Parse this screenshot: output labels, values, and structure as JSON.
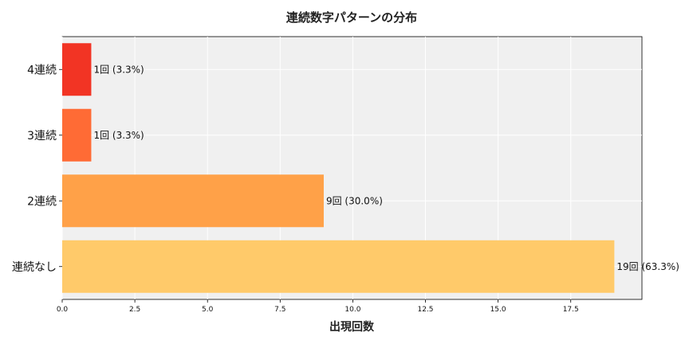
{
  "chart_data": {
    "type": "bar",
    "orientation": "horizontal",
    "title": "連続数字パターンの分布",
    "xlabel": "出現回数",
    "ylabel": "",
    "categories": [
      "連続なし",
      "2連続",
      "3連続",
      "4連続"
    ],
    "values": [
      19,
      9,
      1,
      1
    ],
    "data_labels": [
      "19回 (63.3%)",
      "9回 (30.0%)",
      "1回 (3.3%)",
      "1回 (3.3%)"
    ],
    "colors": [
      "#FFCA6A",
      "#FFA148",
      "#FF6B35",
      "#F23424"
    ],
    "xlim": [
      0,
      19.95
    ],
    "xticks": [
      0,
      2.5,
      5,
      7.5,
      10,
      12.5,
      15,
      17.5
    ],
    "xtick_labels": [
      "0.0",
      "2.5",
      "5.0",
      "7.5",
      "10.0",
      "12.5",
      "15.0",
      "17.5"
    ],
    "grid": true,
    "background": "#F0F0F0"
  }
}
